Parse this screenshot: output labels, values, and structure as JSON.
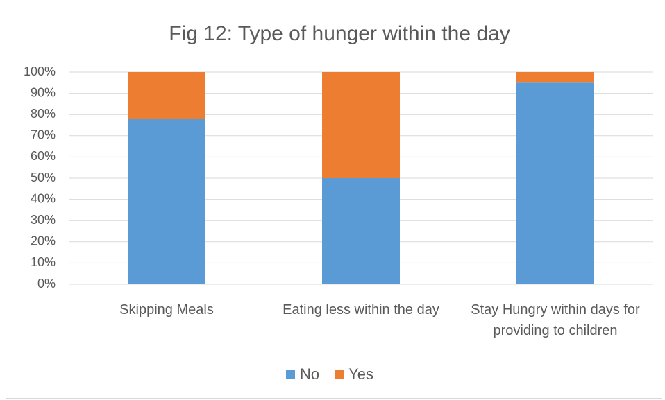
{
  "chart_data": {
    "type": "stacked_bar",
    "title": "Fig 12: Type of hunger within the day",
    "categories": [
      "Skipping Meals",
      "Eating less within the day",
      "Stay Hungry within days for providing to children"
    ],
    "series": [
      {
        "name": "No",
        "color": "#5b9bd5",
        "values": [
          78,
          50,
          95
        ]
      },
      {
        "name": "Yes",
        "color": "#ed7d31",
        "values": [
          22,
          50,
          5
        ]
      }
    ],
    "ylim": [
      0,
      100
    ],
    "yticks": [
      {
        "value": 0,
        "label": "0%"
      },
      {
        "value": 10,
        "label": "10%"
      },
      {
        "value": 20,
        "label": "20%"
      },
      {
        "value": 30,
        "label": "30%"
      },
      {
        "value": 40,
        "label": "40%"
      },
      {
        "value": 50,
        "label": "50%"
      },
      {
        "value": 60,
        "label": "60%"
      },
      {
        "value": 70,
        "label": "70%"
      },
      {
        "value": 80,
        "label": "80%"
      },
      {
        "value": 90,
        "label": "90%"
      },
      {
        "value": 100,
        "label": "100%"
      }
    ],
    "grid": true,
    "legend": "bottom"
  }
}
